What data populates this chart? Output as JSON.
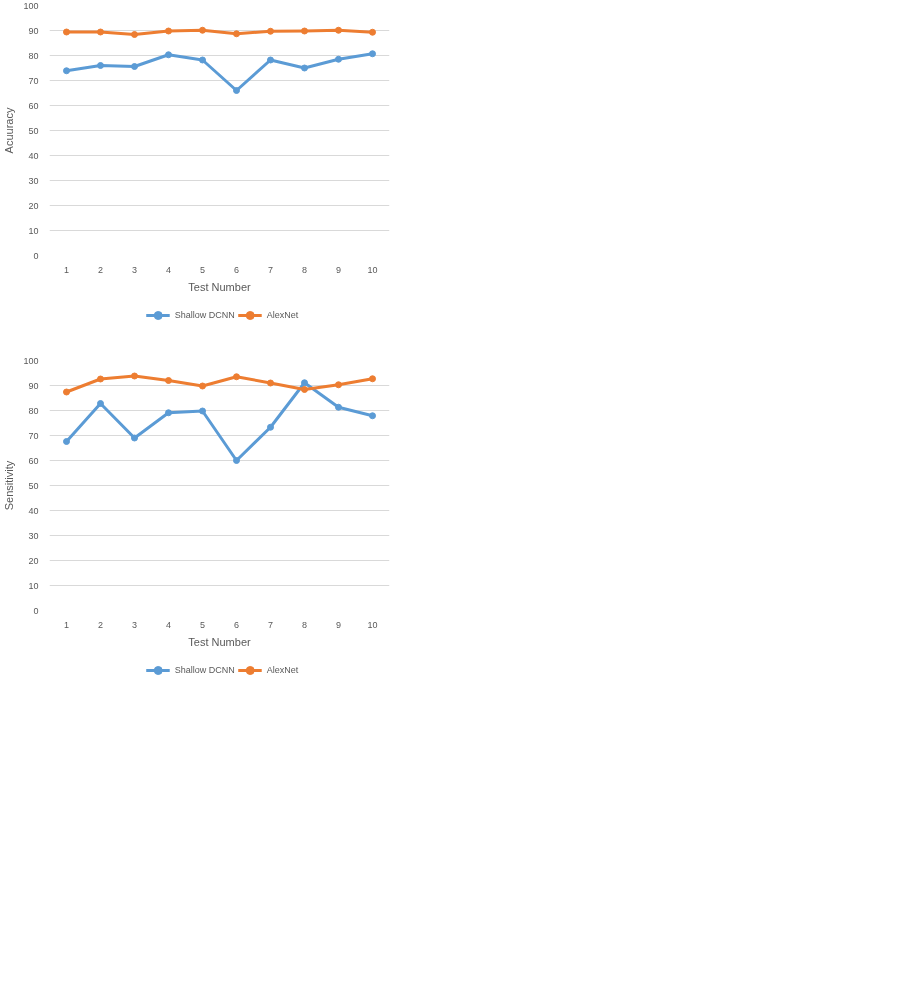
{
  "chart_data": [
    {
      "type": "line",
      "ylabel": "Acuuracy",
      "xlabel": "Test Number",
      "categories": [
        "1",
        "2",
        "3",
        "4",
        "5",
        "6",
        "7",
        "8",
        "9",
        "10"
      ],
      "series": [
        {
          "name": "Shallow DCNN",
          "color": "#5b9bd5",
          "values": [
            73.9,
            76,
            75.6,
            80.3,
            78.2,
            66,
            78.2,
            75,
            78.5,
            80.7
          ]
        },
        {
          "name": "AlexNet",
          "color": "#ed7d31",
          "values": [
            89.4,
            89.4,
            88.4,
            89.8,
            90.1,
            88.7,
            89.7,
            89.8,
            90.1,
            89.3
          ]
        }
      ],
      "ylim": [
        0,
        100
      ],
      "yticks": [
        0,
        10,
        20,
        30,
        40,
        50,
        60,
        70,
        80,
        90,
        100
      ],
      "grid": "y",
      "legend": "bottom",
      "marker": "circle",
      "line_style": "solid"
    },
    {
      "type": "line",
      "ylabel": "Sensitivity",
      "xlabel": "Test Number",
      "categories": [
        "1",
        "2",
        "3",
        "4",
        "5",
        "6",
        "7",
        "8",
        "9",
        "10"
      ],
      "series": [
        {
          "name": "Shallow DCNN",
          "color": "#5b9bd5",
          "values": [
            67.6,
            82.8,
            69,
            79.1,
            79.8,
            60,
            73.3,
            91.1,
            81.3,
            77.9
          ]
        },
        {
          "name": "AlexNet",
          "color": "#ed7d31",
          "values": [
            87.4,
            92.6,
            93.8,
            92,
            89.8,
            93.5,
            91,
            88.4,
            90.3,
            92.7
          ]
        }
      ],
      "ylim": [
        0,
        100
      ],
      "yticks": [
        0,
        10,
        20,
        30,
        40,
        50,
        60,
        70,
        80,
        90,
        100
      ],
      "grid": "y",
      "legend": "bottom",
      "marker": "circle",
      "line_style": "solid"
    }
  ]
}
